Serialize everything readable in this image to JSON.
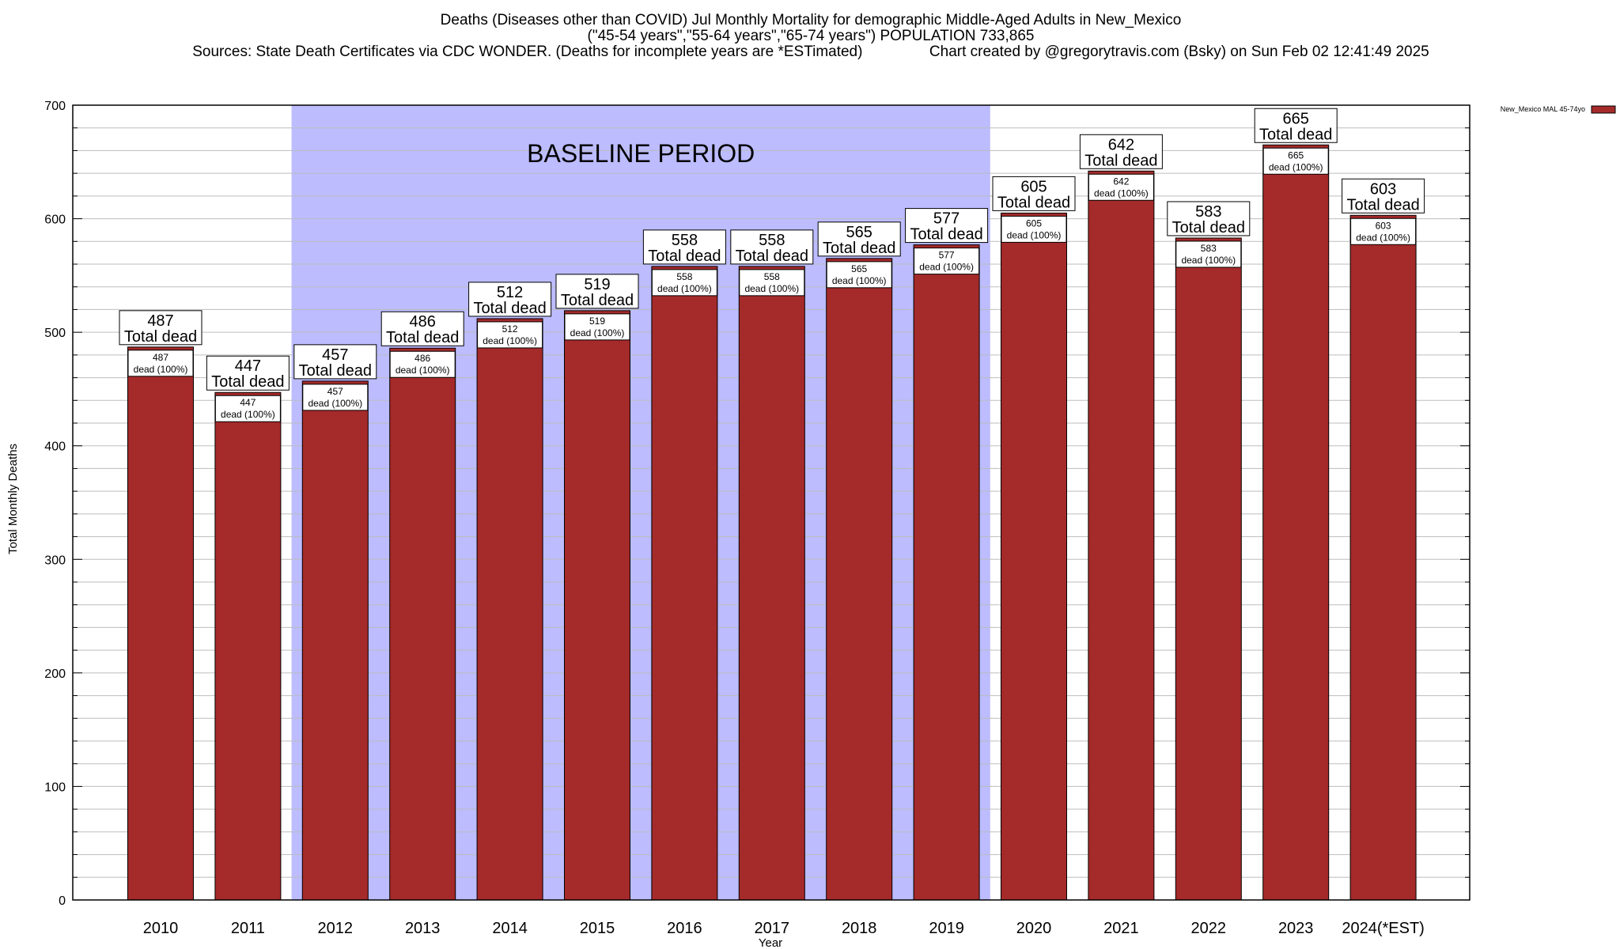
{
  "header": {
    "line1": "Deaths (Diseases other than COVID) Jul Monthly Mortality for demographic Middle-Aged Adults in New_Mexico",
    "line2": "(\"45-54 years\",\"55-64 years\",\"65-74 years\") POPULATION 733,865",
    "line3": "Sources: State Death Certificates via CDC WONDER. (Deaths for incomplete years are *ESTimated)                Chart created by @gregorytravis.com (Bsky) on Sun Feb 02 12:41:49 2025"
  },
  "chart_data": {
    "type": "bar",
    "xlabel": "Year",
    "ylabel": "Total Monthly Deaths",
    "ylim": [
      0,
      700
    ],
    "y_ticks": [
      0,
      100,
      200,
      300,
      400,
      500,
      600,
      700
    ],
    "y_minor_step": 20,
    "grid": true,
    "categories": [
      "2010",
      "2011",
      "2012",
      "2013",
      "2014",
      "2015",
      "2016",
      "2017",
      "2018",
      "2019",
      "2020",
      "2021",
      "2022",
      "2023",
      "2024(*EST)"
    ],
    "series": [
      {
        "name": "New_Mexico MAL 45-74yo",
        "color": "#a52a2a",
        "values": [
          487,
          447,
          457,
          486,
          512,
          519,
          558,
          558,
          565,
          577,
          605,
          642,
          583,
          665,
          603
        ]
      }
    ],
    "bar_label_suffix": "Total dead",
    "inner_label_line1": [
      "487",
      "447",
      "457",
      "486",
      "512",
      "519",
      "558",
      "558",
      "565",
      "577",
      "605",
      "642",
      "583",
      "665",
      "603"
    ],
    "inner_label_line2": "dead (100%)",
    "baseline": {
      "label": "BASELINE PERIOD",
      "from": "2012",
      "to": "2019",
      "color": "#bcbcff"
    },
    "legend": {
      "position": "top-right"
    }
  }
}
